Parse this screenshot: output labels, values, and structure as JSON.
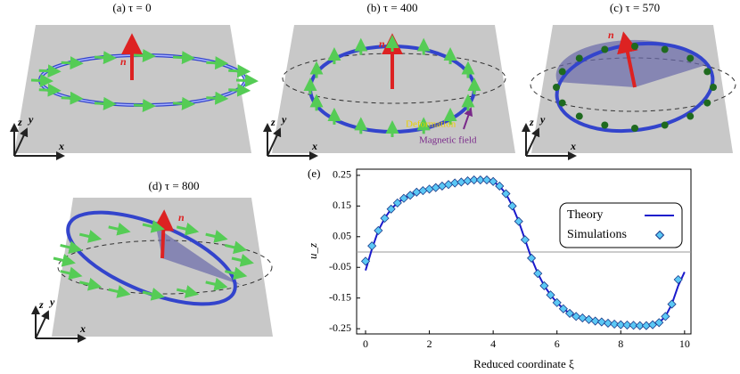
{
  "panels": [
    {
      "caption": "(a) τ = 0",
      "n": "n",
      "x": "x",
      "y": "y",
      "z": "z"
    },
    {
      "caption": "(b) τ = 400",
      "n": "n",
      "x": "x",
      "y": "y",
      "z": "z",
      "annotations": [
        "Deformation",
        "Magnetic field"
      ]
    },
    {
      "caption": "(c) τ = 570",
      "n": "n",
      "x": "x",
      "y": "y",
      "z": "z"
    },
    {
      "caption": "(d) τ = 800",
      "n": "n",
      "x": "x",
      "y": "y",
      "z": "z"
    }
  ],
  "chart_data": {
    "type": "line",
    "panel_label": "(e)",
    "xlabel": "Reduced coordinate ξ",
    "ylabel": "u_z",
    "xlim": [
      -0.28,
      10.2
    ],
    "ylim": [
      -0.267,
      0.27
    ],
    "xticks": [
      0,
      2,
      4,
      6,
      8,
      10
    ],
    "yticks": [
      -0.25,
      -0.15,
      -0.05,
      0.05,
      0.15,
      0.25
    ],
    "reference_line": 0,
    "legend": "upper right",
    "x": [
      0,
      0.2,
      0.4,
      0.6,
      0.8,
      1,
      1.2,
      1.4,
      1.6,
      1.8,
      2,
      2.2,
      2.4,
      2.6,
      2.8,
      3,
      3.2,
      3.4,
      3.6,
      3.8,
      4,
      4.2,
      4.4,
      4.6,
      4.8,
      5,
      5.2,
      5.4,
      5.6,
      5.8,
      6,
      6.2,
      6.4,
      6.6,
      6.8,
      7,
      7.2,
      7.4,
      7.6,
      7.8,
      8,
      8.2,
      8.4,
      8.6,
      8.8,
      9,
      9.2,
      9.4,
      9.6,
      9.8,
      10
    ],
    "series": [
      {
        "name": "Theory",
        "color": "#1a1acc",
        "marker": "line",
        "values": [
          -0.06,
          0.01,
          0.07,
          0.11,
          0.14,
          0.16,
          0.175,
          0.185,
          0.195,
          0.2,
          0.205,
          0.21,
          0.215,
          0.22,
          0.225,
          0.228,
          0.232,
          0.235,
          0.235,
          0.235,
          0.23,
          0.215,
          0.19,
          0.15,
          0.1,
          0.04,
          -0.02,
          -0.07,
          -0.11,
          -0.14,
          -0.165,
          -0.185,
          -0.2,
          -0.21,
          -0.215,
          -0.22,
          -0.225,
          -0.228,
          -0.232,
          -0.235,
          -0.237,
          -0.238,
          -0.239,
          -0.24,
          -0.24,
          -0.237,
          -0.23,
          -0.21,
          -0.17,
          -0.11,
          -0.065
        ]
      },
      {
        "name": "Simulations",
        "color": "#5bc8f5",
        "marker": "diamond",
        "values": [
          -0.03,
          0.02,
          0.07,
          0.11,
          0.14,
          0.16,
          0.175,
          0.185,
          0.195,
          0.2,
          0.205,
          0.21,
          0.215,
          0.22,
          0.225,
          0.228,
          0.232,
          0.235,
          0.235,
          0.235,
          0.23,
          0.215,
          0.19,
          0.15,
          0.1,
          0.04,
          -0.02,
          -0.07,
          -0.11,
          -0.14,
          -0.165,
          -0.185,
          -0.2,
          -0.21,
          -0.215,
          -0.22,
          -0.225,
          -0.228,
          -0.232,
          -0.235,
          -0.237,
          -0.238,
          -0.239,
          -0.24,
          -0.24,
          -0.237,
          -0.23,
          -0.21,
          -0.17,
          -0.09,
          null
        ]
      }
    ]
  }
}
